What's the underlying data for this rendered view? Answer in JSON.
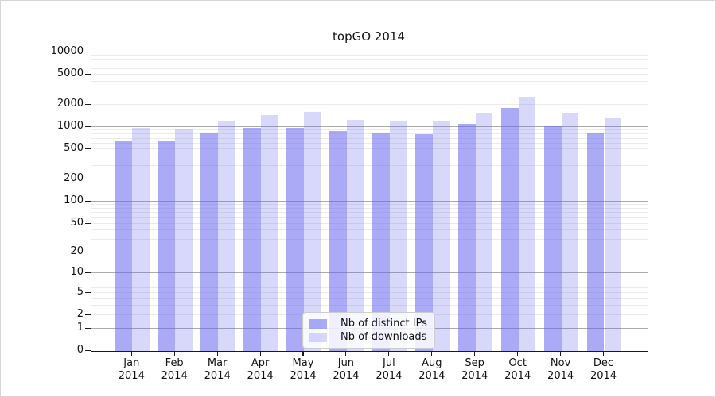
{
  "title": "topGO 2014",
  "legend": {
    "items": [
      {
        "label": "Nb of distinct IPs",
        "color": "rgba(100,100,240,0.55)"
      },
      {
        "label": "Nb of downloads",
        "color": "rgba(100,100,240,0.25)"
      }
    ]
  },
  "colors": {
    "bar_distinct_ips": "rgba(100,100,240,0.55)",
    "bar_downloads": "rgba(100,100,240,0.25)",
    "major_gridline": "#ababab",
    "minor_gridline": "#ebebeb",
    "axis": "#1a1a1a"
  },
  "chart_data": {
    "type": "bar",
    "title": "topGO 2014",
    "categories": [
      "Jan",
      "Feb",
      "Mar",
      "Apr",
      "May",
      "Jun",
      "Jul",
      "Aug",
      "Sep",
      "Oct",
      "Nov",
      "Dec"
    ],
    "x_tick_year": "2014",
    "series": [
      {
        "name": "Nb of distinct IPs",
        "values": [
          660,
          660,
          820,
          970,
          970,
          885,
          820,
          800,
          1100,
          1800,
          1030,
          820
        ],
        "color": "rgba(100,100,240,0.55)"
      },
      {
        "name": "Nb of downloads",
        "values": [
          985,
          930,
          1190,
          1460,
          1590,
          1250,
          1215,
          1190,
          1550,
          2535,
          1550,
          1340
        ],
        "color": "rgba(100,100,240,0.25)"
      }
    ],
    "xlabel": "",
    "ylabel": "",
    "yscale": "log1p",
    "ylim": [
      0,
      10000
    ],
    "y_ticks": [
      0,
      1,
      2,
      5,
      10,
      20,
      50,
      100,
      200,
      500,
      1000,
      2000,
      5000,
      10000
    ],
    "grid": true,
    "legend_position": "bottom-center"
  }
}
